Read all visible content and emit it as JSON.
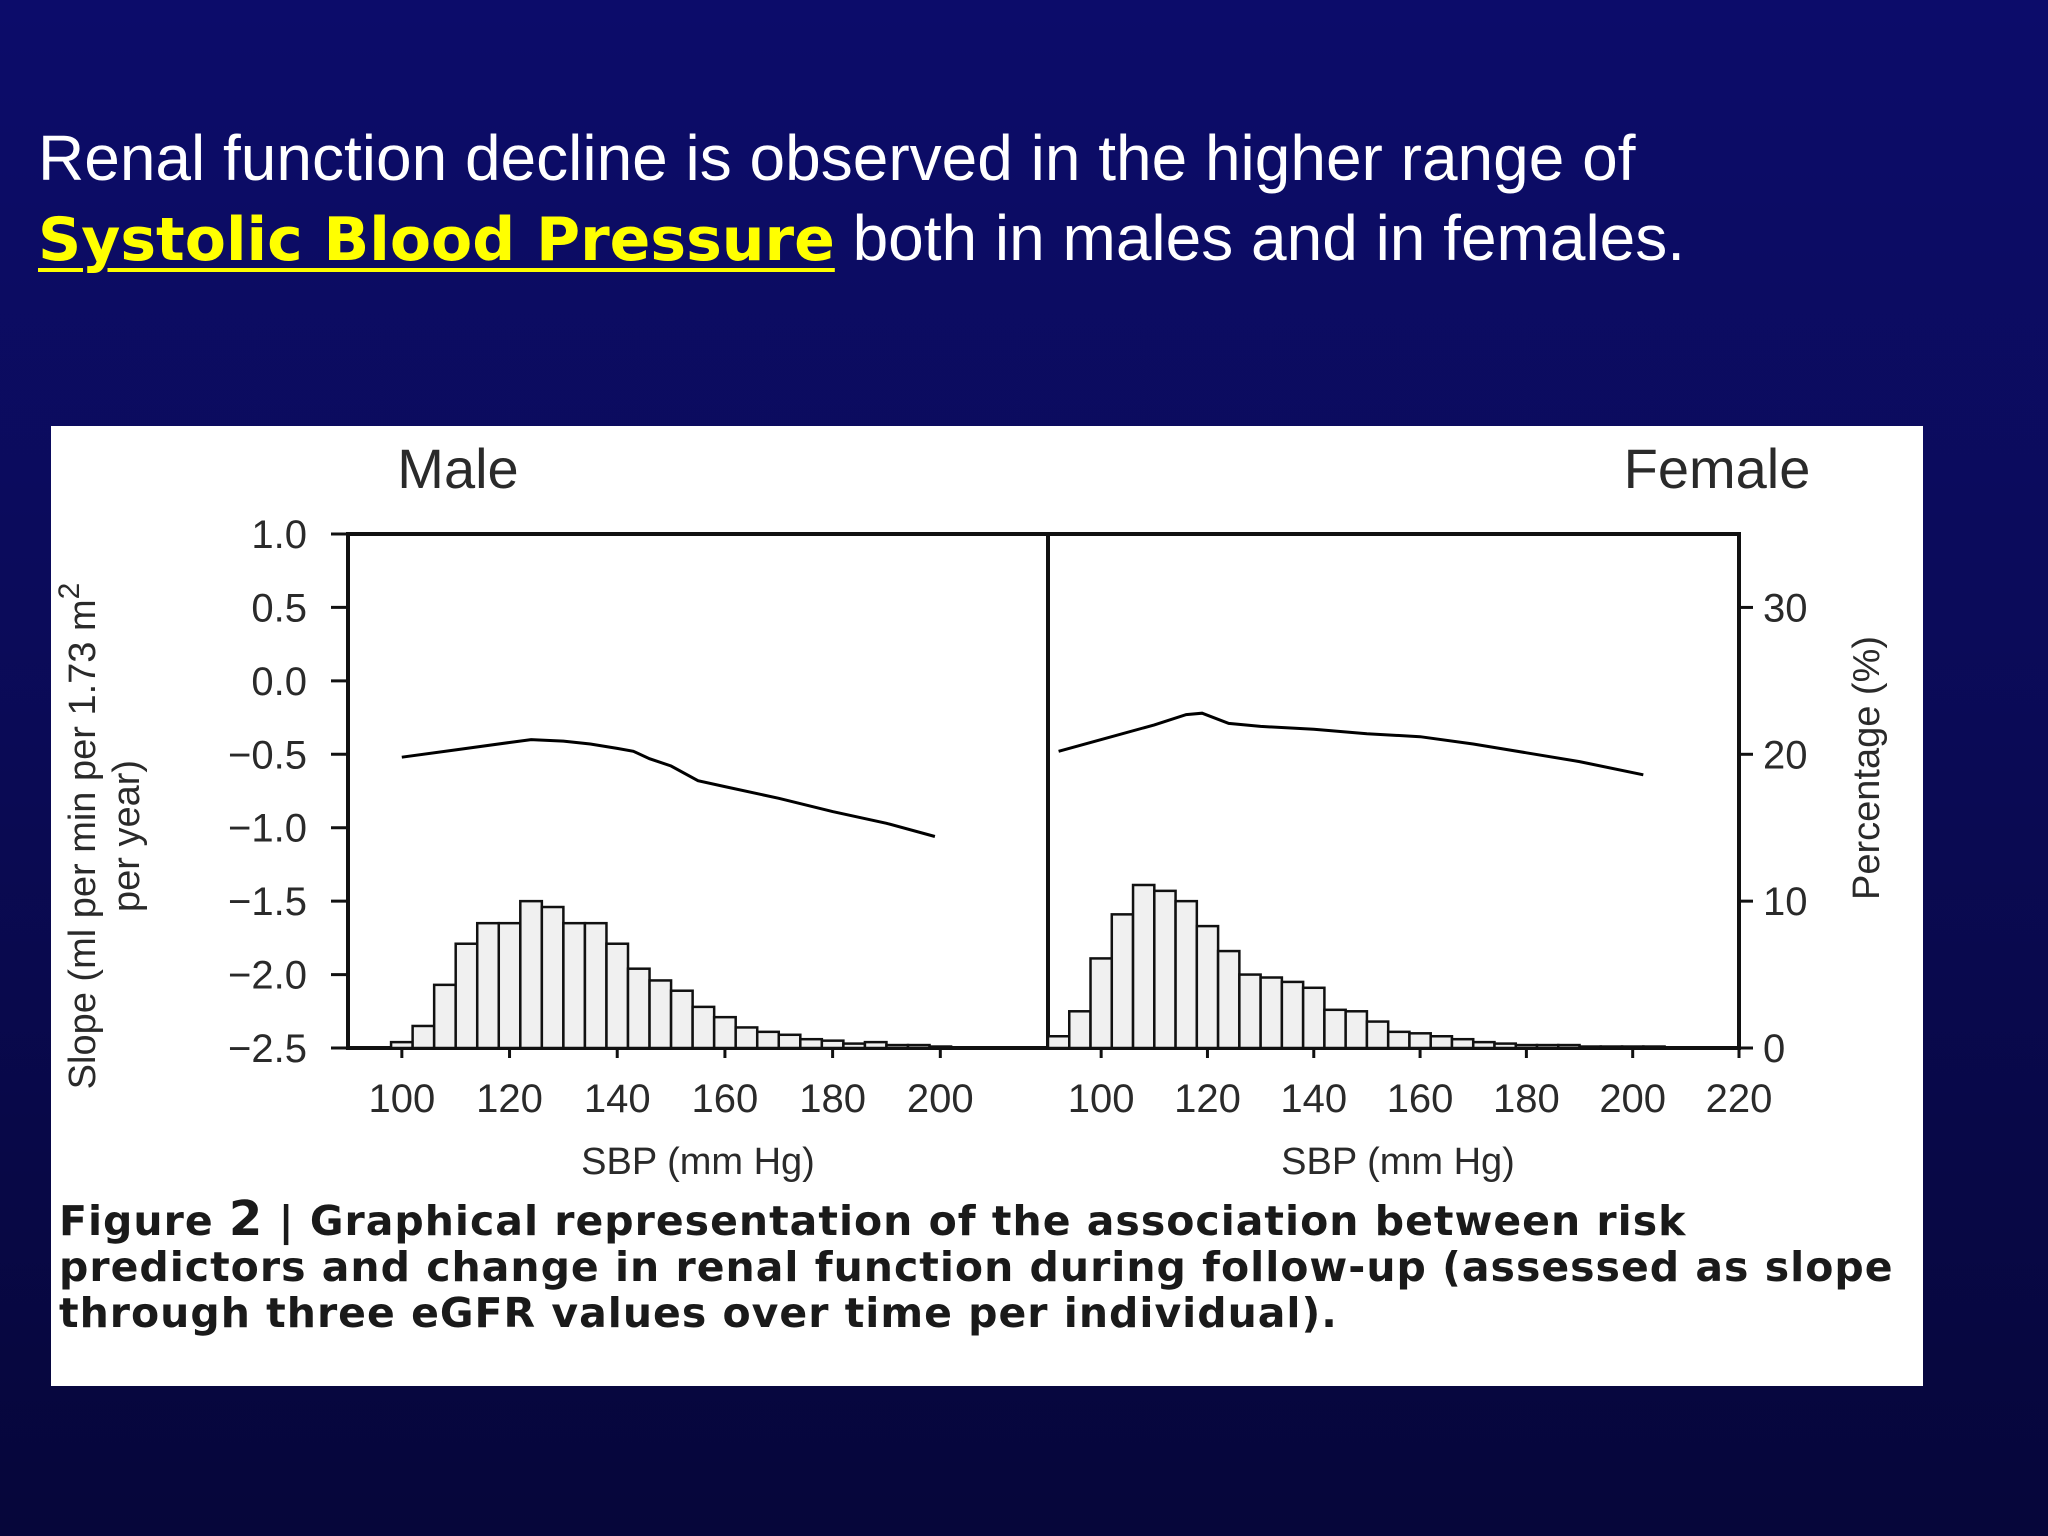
{
  "slide": {
    "title_line1": "Renal function decline is observed in the higher range of",
    "title_highlight": "Systolic Blood Pressure",
    "title_line2_rest": "both in males and in females."
  },
  "colors": {
    "background": "#0b0b5a",
    "title_text": "#ffffff",
    "highlight": "#ffff00",
    "bar_fill": "#f0f0f0",
    "line": "#000000"
  },
  "chart_data": [
    {
      "type": "line+bar",
      "panel_label": "Male",
      "xlabel": "SBP (mm Hg)",
      "ylabel": "Slope (ml per min per 1.73 m2 per year)",
      "ylim": [
        -2.5,
        1.0
      ],
      "y_ticks": [
        "1.0",
        "0.5",
        "0.0",
        "−0.5",
        "−1.0",
        "−1.5",
        "−2.0",
        "−2.5"
      ],
      "xlim": [
        90,
        220
      ],
      "x_ticks": [
        "100",
        "120",
        "140",
        "160",
        "180",
        "200"
      ],
      "x_tick_values": [
        100,
        120,
        140,
        160,
        180,
        200
      ],
      "line": {
        "x": [
          100,
          110,
          120,
          124,
          130,
          135,
          140,
          143,
          146,
          150,
          155,
          160,
          170,
          180,
          190,
          199
        ],
        "y": [
          -0.52,
          -0.47,
          -0.42,
          -0.4,
          -0.41,
          -0.43,
          -0.46,
          -0.48,
          -0.53,
          -0.58,
          -0.68,
          -0.72,
          -0.8,
          -0.89,
          -0.97,
          -1.06
        ]
      },
      "histogram": {
        "bin_width": 4,
        "bin_starts": [
          98,
          102,
          106,
          110,
          114,
          118,
          122,
          126,
          130,
          134,
          138,
          142,
          146,
          150,
          154,
          158,
          162,
          166,
          170,
          174,
          178,
          182,
          186,
          190,
          194,
          198
        ],
        "percent": [
          0.4,
          1.5,
          4.3,
          7.1,
          8.5,
          8.5,
          10.0,
          9.6,
          8.5,
          8.5,
          7.1,
          5.4,
          4.6,
          3.9,
          2.8,
          2.1,
          1.4,
          1.1,
          0.9,
          0.6,
          0.5,
          0.3,
          0.4,
          0.2,
          0.2,
          0.1
        ]
      }
    },
    {
      "type": "line+bar",
      "panel_label": "Female",
      "xlabel": "SBP (mm Hg)",
      "ylabel_right": "Percentage (%)",
      "y2lim": [
        0,
        35
      ],
      "y2_ticks": [
        "30",
        "20",
        "10",
        "0"
      ],
      "y2_tick_values": [
        30,
        20,
        10,
        0
      ],
      "xlim": [
        90,
        220
      ],
      "x_ticks": [
        "100",
        "120",
        "140",
        "160",
        "180",
        "200",
        "220"
      ],
      "x_tick_values": [
        100,
        120,
        140,
        160,
        180,
        200,
        220
      ],
      "line": {
        "x": [
          92,
          100,
          110,
          116,
          119,
          124,
          130,
          140,
          150,
          160,
          170,
          180,
          190,
          202
        ],
        "y": [
          -0.48,
          -0.4,
          -0.3,
          -0.23,
          -0.22,
          -0.29,
          -0.31,
          -0.33,
          -0.36,
          -0.38,
          -0.43,
          -0.49,
          -0.55,
          -0.64
        ]
      },
      "histogram": {
        "bin_width": 4,
        "bin_starts": [
          90,
          94,
          98,
          102,
          106,
          110,
          114,
          118,
          122,
          126,
          130,
          134,
          138,
          142,
          146,
          150,
          154,
          158,
          162,
          166,
          170,
          174,
          178,
          182,
          186,
          190,
          194,
          198,
          202
        ],
        "percent": [
          0.8,
          2.5,
          6.1,
          9.1,
          11.1,
          10.7,
          10.0,
          8.3,
          6.6,
          5.0,
          4.8,
          4.5,
          4.1,
          2.6,
          2.5,
          1.8,
          1.1,
          1.0,
          0.8,
          0.6,
          0.4,
          0.3,
          0.2,
          0.2,
          0.2,
          0.1,
          0.1,
          0.1,
          0.1
        ]
      }
    }
  ],
  "figure": {
    "male_label": "Male",
    "female_label": "Female",
    "ylabel_line1": "Slope (ml per min per 1.73 m",
    "ylabel_sup": "2",
    "ylabel_line2": "per year)",
    "ylabel_right": "Percentage (%)",
    "xlabel_left": "SBP (mm Hg)",
    "xlabel_right": "SBP (mm Hg)",
    "caption_prefix": "Figure",
    "caption_num": "2",
    "caption_text": "| Graphical representation of the association between risk predictors and change in renal function during follow-up (assessed as slope through three eGFR values over time per individual)."
  }
}
